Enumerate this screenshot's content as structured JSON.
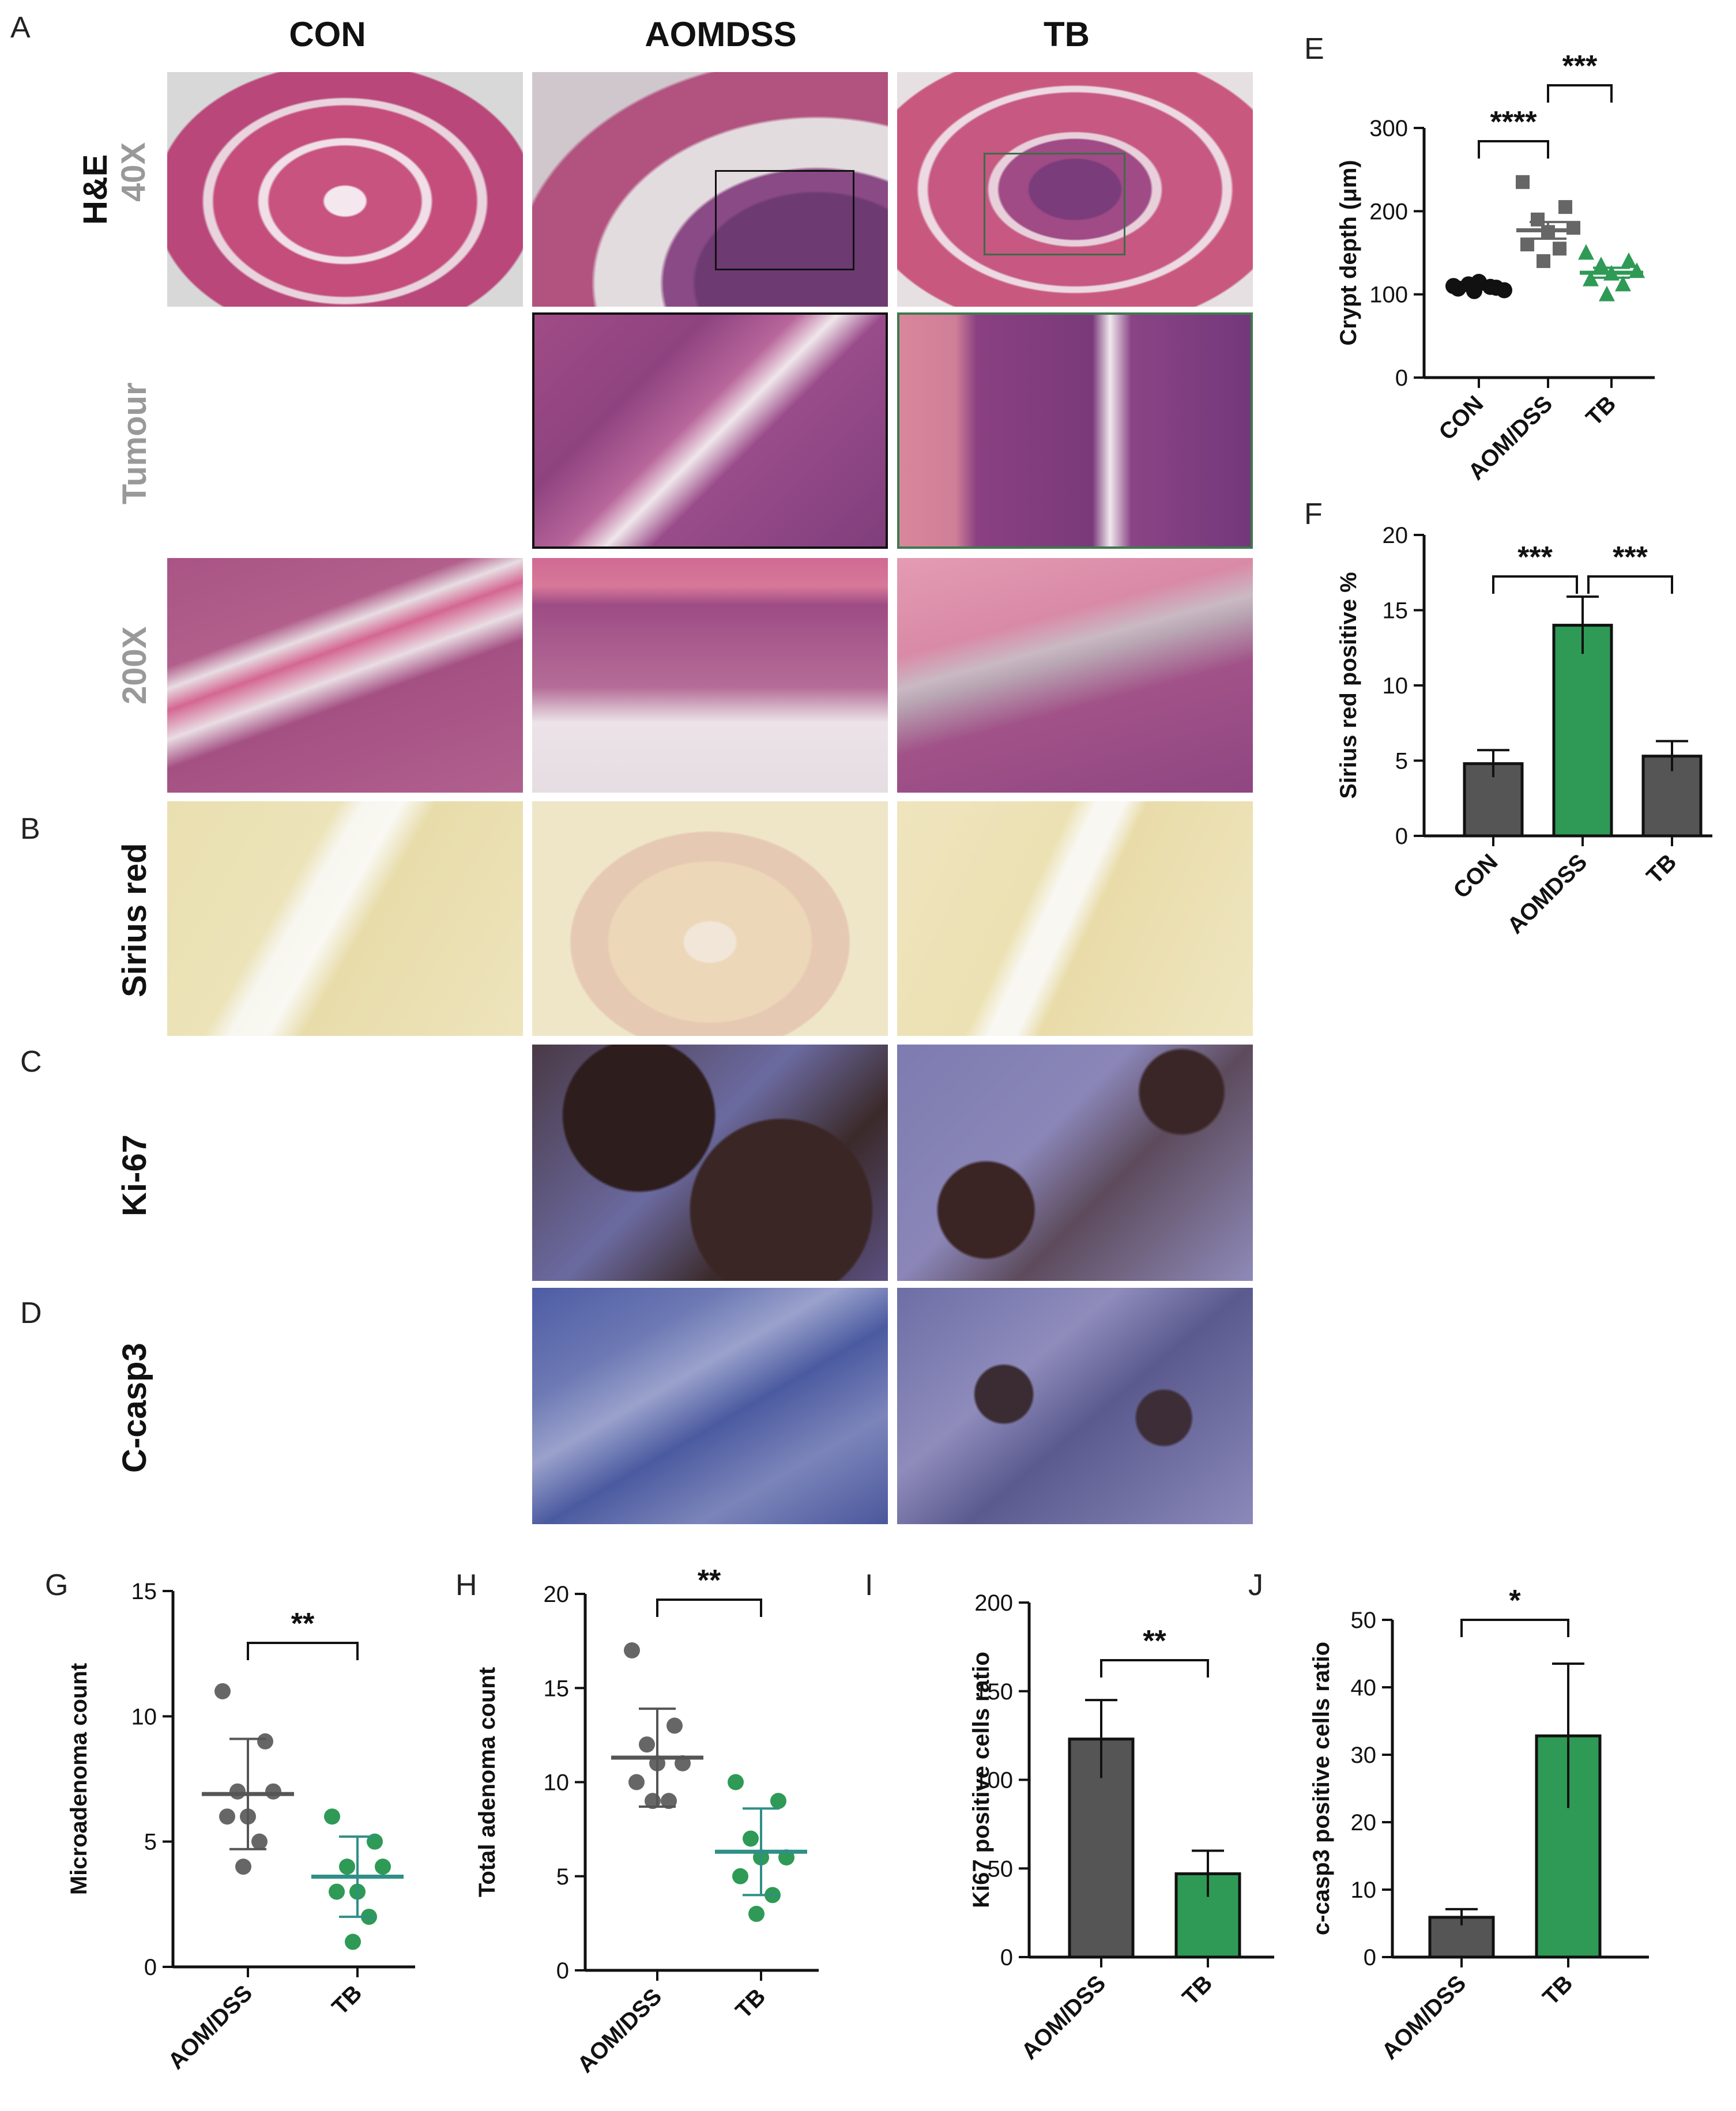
{
  "panel_letters": [
    "A",
    "B",
    "C",
    "D",
    "E",
    "F",
    "G",
    "H",
    "I",
    "J"
  ],
  "column_headers": [
    "CON",
    "AOMDSS",
    "TB"
  ],
  "row_labels": {
    "he": "H&E",
    "mag40": "40X",
    "tumour": "Tumour",
    "mag200": "200X",
    "sirius": "Sirius red",
    "ki67": "Ki-67",
    "ccasp3": "C-casp3"
  },
  "colors": {
    "he_pink": "#c8537f",
    "he_purple": "#7a3c7a",
    "sirius_yellow": "#e8dca0",
    "ki67_brown": "#3b2626",
    "ki67_blue": "#6b6aa0",
    "ccasp3_blue": "#4b5aa0",
    "gray_bar": "#555555",
    "green_bar": "#2e9a55",
    "teal_line": "#2f8f86"
  },
  "chart_data": [
    {
      "panel": "E",
      "type": "scatter",
      "categories": [
        "CON",
        "AOM/DSS",
        "TB"
      ],
      "ylabel": "Crypt depth (μm)",
      "ylim": [
        0,
        300
      ],
      "yticks": [
        0,
        100,
        200,
        300
      ],
      "series": [
        {
          "category": "CON",
          "marker": "circle",
          "color": "#111111",
          "values": [
            110,
            108,
            112,
            105,
            115,
            107,
            109,
            104
          ],
          "mean": 109,
          "sem": 3
        },
        {
          "category": "AOM/DSS",
          "marker": "square",
          "color": "#666666",
          "values": [
            235,
            205,
            190,
            180,
            175,
            160,
            155,
            140
          ],
          "mean": 177,
          "sem": 10
        },
        {
          "category": "TB",
          "marker": "triangle",
          "color": "#2e9a55",
          "values": [
            150,
            140,
            135,
            128,
            125,
            118,
            112,
            100
          ],
          "mean": 126,
          "sem": 6
        }
      ],
      "significance": [
        {
          "pair": [
            "CON",
            "AOM/DSS"
          ],
          "label": "****"
        },
        {
          "pair": [
            "AOM/DSS",
            "TB"
          ],
          "label": "***"
        }
      ]
    },
    {
      "panel": "F",
      "type": "bar",
      "categories": [
        "CON",
        "AOMDSS",
        "TB"
      ],
      "values": [
        4.8,
        14.0,
        5.3
      ],
      "errors": [
        0.9,
        1.9,
        1.0
      ],
      "colors": [
        "#555555",
        "#2e9a55",
        "#555555"
      ],
      "ylabel": "Sirius red positive %",
      "ylim": [
        0,
        20
      ],
      "yticks": [
        0,
        5,
        10,
        15,
        20
      ],
      "significance": [
        {
          "pair": [
            "CON",
            "AOMDSS"
          ],
          "label": "***"
        },
        {
          "pair": [
            "AOMDSS",
            "TB"
          ],
          "label": "***"
        }
      ]
    },
    {
      "panel": "G",
      "type": "scatter",
      "categories": [
        "AOM/DSS",
        "TB"
      ],
      "ylabel": "Microadenoma count",
      "ylim": [
        0,
        15
      ],
      "yticks": [
        0,
        5,
        10,
        15
      ],
      "series": [
        {
          "category": "AOM/DSS",
          "color": "#666666",
          "values": [
            11,
            9,
            7,
            7,
            6,
            6,
            5,
            4
          ],
          "mean": 6.9,
          "sd": 2.2
        },
        {
          "category": "TB",
          "color": "#2e9a55",
          "values": [
            6,
            5,
            4,
            4,
            3,
            3,
            2,
            1
          ],
          "mean": 3.6,
          "sd": 1.6
        }
      ],
      "significance": [
        {
          "pair": [
            "AOM/DSS",
            "TB"
          ],
          "label": "**"
        }
      ]
    },
    {
      "panel": "H",
      "type": "scatter",
      "categories": [
        "AOM/DSS",
        "TB"
      ],
      "ylabel": "Total adenoma count",
      "ylim": [
        0,
        20
      ],
      "yticks": [
        0,
        5,
        10,
        15,
        20
      ],
      "series": [
        {
          "category": "AOM/DSS",
          "color": "#666666",
          "values": [
            17,
            13,
            12,
            11,
            11,
            10,
            9,
            9
          ],
          "mean": 11.3,
          "sd": 2.6
        },
        {
          "category": "TB",
          "color": "#2e9a55",
          "values": [
            10,
            9,
            7,
            6,
            6,
            5,
            4,
            3
          ],
          "mean": 6.3,
          "sd": 2.3
        }
      ],
      "significance": [
        {
          "pair": [
            "AOM/DSS",
            "TB"
          ],
          "label": "**"
        }
      ]
    },
    {
      "panel": "I",
      "type": "bar",
      "categories": [
        "AOM/DSS",
        "TB"
      ],
      "values": [
        123,
        47
      ],
      "errors": [
        22,
        13
      ],
      "colors": [
        "#555555",
        "#2e9a55"
      ],
      "ylabel": "Ki67 positive cells ratio",
      "ylim": [
        0,
        200
      ],
      "yticks": [
        0,
        50,
        100,
        150,
        200
      ],
      "significance": [
        {
          "pair": [
            "AOM/DSS",
            "TB"
          ],
          "label": "**"
        }
      ]
    },
    {
      "panel": "J",
      "type": "bar",
      "categories": [
        "AOM/DSS",
        "TB"
      ],
      "values": [
        5.9,
        32.8
      ],
      "errors": [
        1.2,
        10.7
      ],
      "colors": [
        "#555555",
        "#2e9a55"
      ],
      "ylabel": "c-casp3 positive cells ratio",
      "ylim": [
        0,
        50
      ],
      "yticks": [
        0,
        10,
        20,
        30,
        40,
        50
      ],
      "significance": [
        {
          "pair": [
            "AOM/DSS",
            "TB"
          ],
          "label": "*"
        }
      ]
    }
  ]
}
